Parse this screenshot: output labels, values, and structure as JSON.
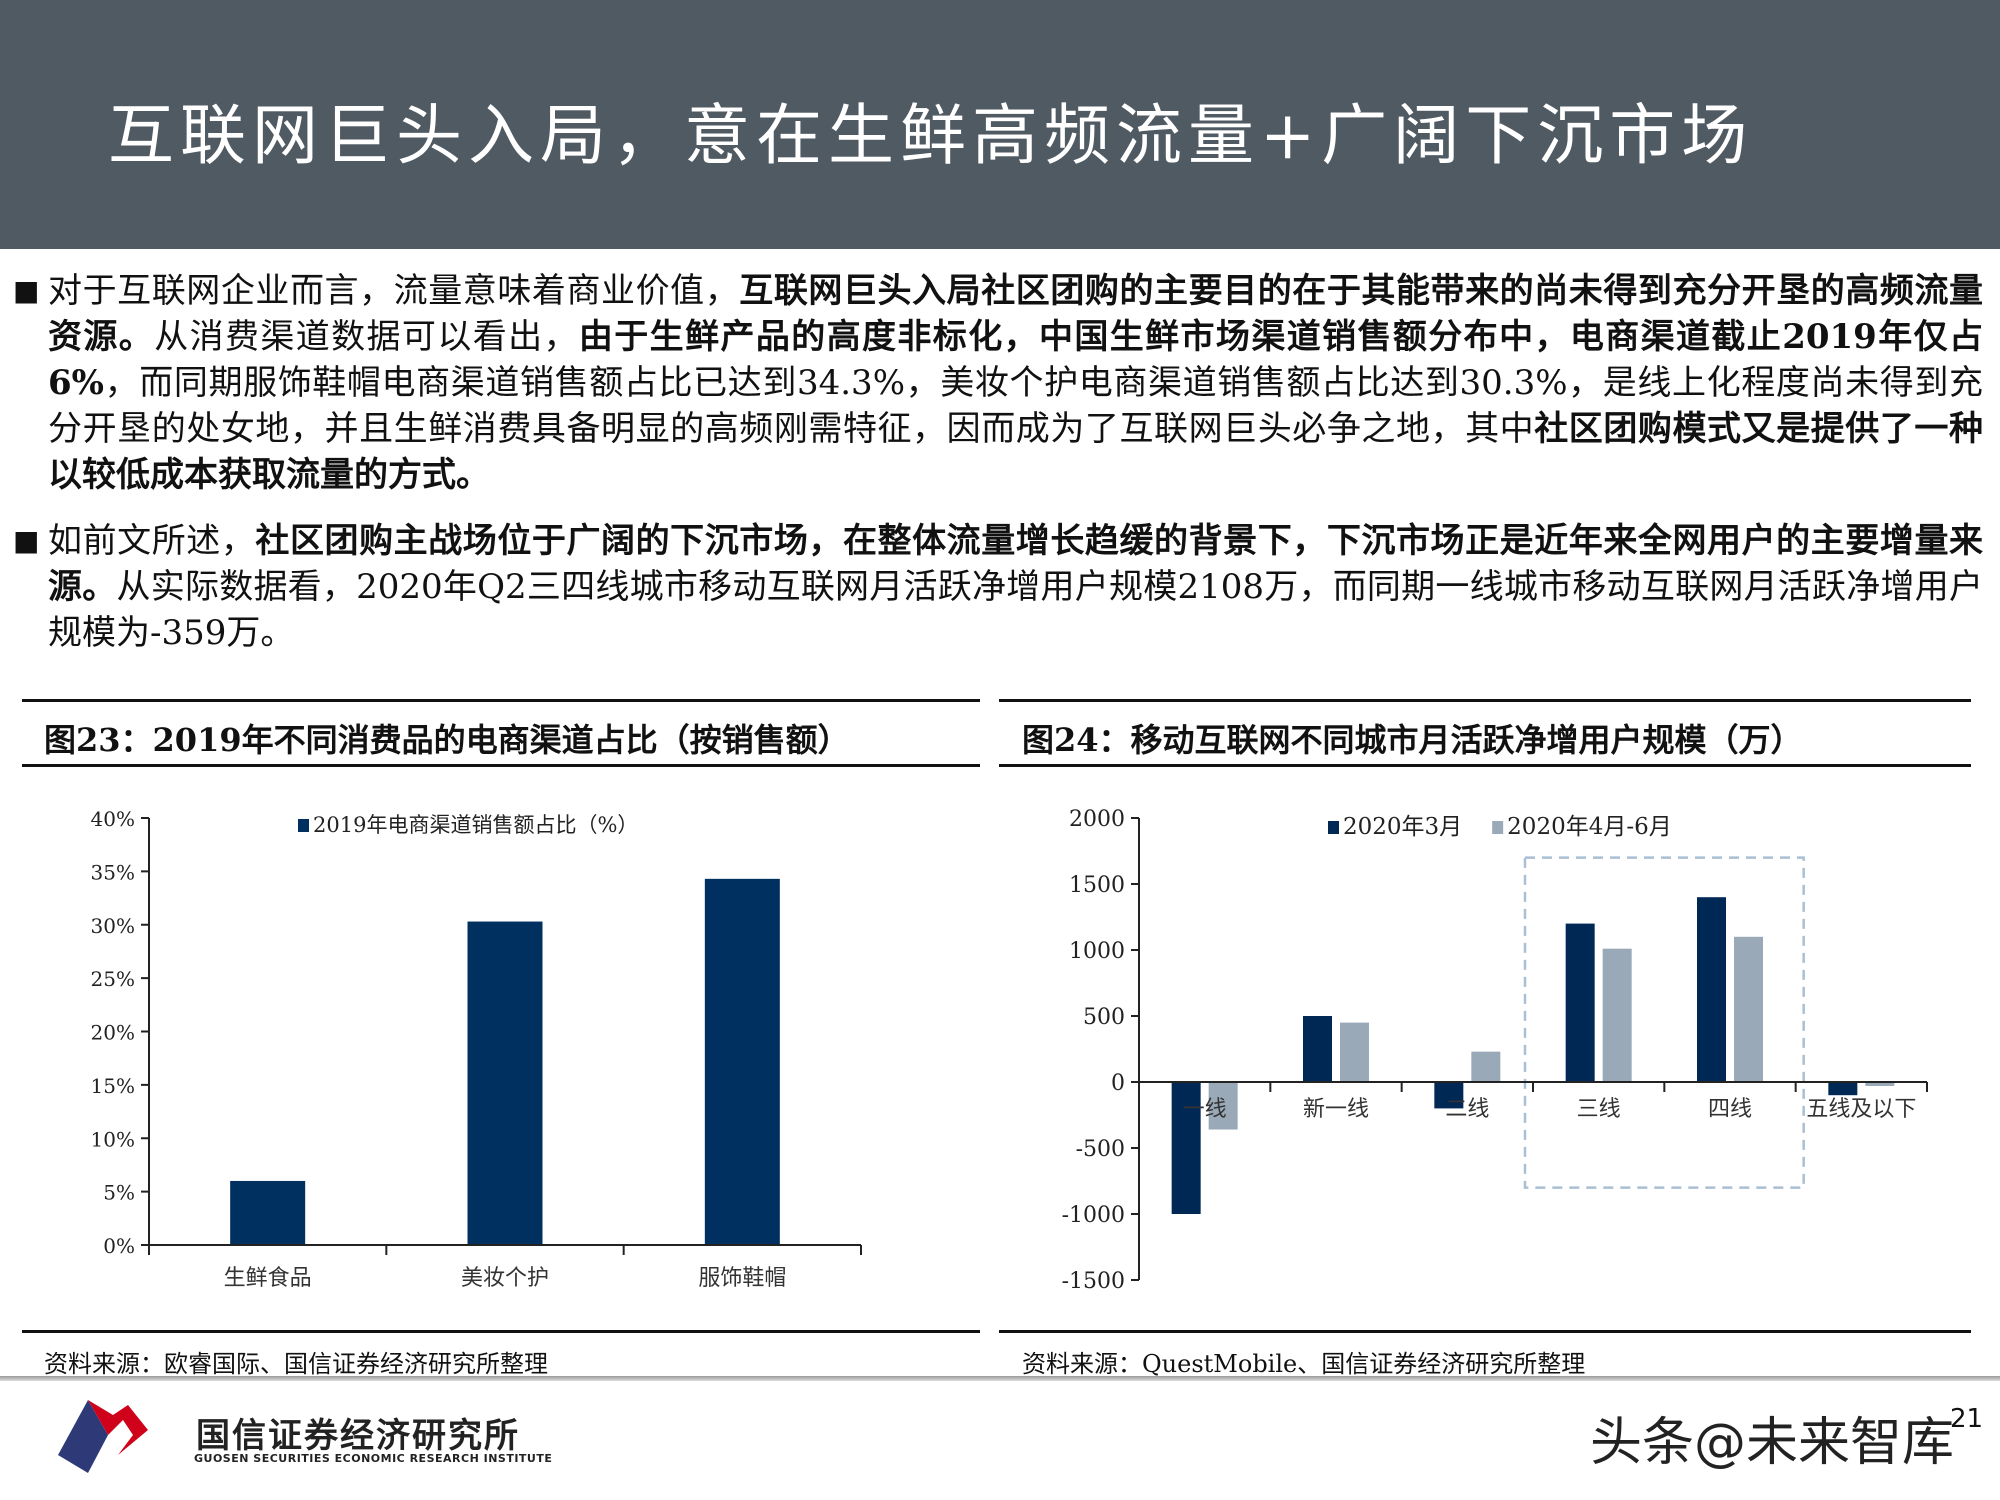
{
  "header": {
    "title": "互联网巨头入局，意在生鲜高频流量+广阔下沉市场"
  },
  "paragraphs": [
    {
      "bullet": "■",
      "segments": [
        {
          "text": "对于互联网企业而言，流量意味着商业价值，",
          "bold": false
        },
        {
          "text": "互联网巨头入局社区团购的主要目的在于其能带来的尚未得到充分开垦的高频流量资源。",
          "bold": true
        },
        {
          "text": "从消费渠道数据可以看出，",
          "bold": false
        },
        {
          "text": "由于生鲜产品的高度非标化，中国生鲜市场渠道销售额分布中，电商渠道截止2019年仅占6%",
          "bold": true
        },
        {
          "text": "，而同期服饰鞋帽电商渠道销售额占比已达到34.3%，美妆个护电商渠道销售额占比达到30.3%，是线上化程度尚未得到充分开垦的处女地，并且生鲜消费具备明显的高频刚需特征，因而成为了互联网巨头必争之地，其中",
          "bold": false
        },
        {
          "text": "社区团购模式又是提供了一种以较低成本获取流量的方式。",
          "bold": true
        }
      ]
    },
    {
      "bullet": "■",
      "segments": [
        {
          "text": "如前文所述，",
          "bold": false
        },
        {
          "text": "社区团购主战场位于广阔的下沉市场，在整体流量增长趋缓的背景下，下沉市场正是近年来全网用户的主要增量来源。",
          "bold": true
        },
        {
          "text": "从实际数据看，2020年Q2三四线城市移动互联网月活跃净增用户规模2108万，而同期一线城市移动互联网月活跃净增用户规模为-359万。",
          "bold": false
        }
      ]
    }
  ],
  "figures": [
    {
      "title": "图23：2019年不同消费品的电商渠道占比（按销售额）",
      "source": "资料来源：欧睿国际、国信证券经济研究所整理"
    },
    {
      "title": "图24：移动互联网不同城市月活跃净增用户规模（万）",
      "source": "资料来源：QuestMobile、国信证券经济研究所整理"
    }
  ],
  "chart_data": [
    {
      "type": "bar",
      "categories": [
        "生鲜食品",
        "美妆个护",
        "服饰鞋帽"
      ],
      "series": [
        {
          "name": "2019年电商渠道销售额占比（%）",
          "values": [
            6.0,
            30.3,
            34.3
          ],
          "color": "#003060"
        }
      ],
      "ylim": [
        0,
        40
      ],
      "yticks": [
        0,
        5,
        10,
        15,
        20,
        25,
        30,
        35,
        40
      ],
      "ytick_labels": [
        "0%",
        "5%",
        "10%",
        "15%",
        "20%",
        "25%",
        "30%",
        "35%",
        "40%"
      ],
      "legend": "top",
      "grid": false
    },
    {
      "type": "bar",
      "categories": [
        "一线",
        "新一线",
        "二线",
        "三线",
        "四线",
        "五线及以下"
      ],
      "series": [
        {
          "name": "2020年3月",
          "values": [
            -1000,
            500,
            -200,
            1200,
            1400,
            -100
          ],
          "color": "#002855"
        },
        {
          "name": "2020年4月-6月",
          "values": [
            -360,
            450,
            230,
            1010,
            1100,
            -30
          ],
          "color": "#9aa9b8"
        }
      ],
      "ylim": [
        -1500,
        2000
      ],
      "yticks": [
        -1500,
        -1000,
        -500,
        0,
        500,
        1000,
        1500,
        2000
      ],
      "ytick_labels": [
        "-1500",
        "-1000",
        "-500",
        "0",
        "500",
        "1000",
        "1500",
        "2000"
      ],
      "legend": "top",
      "grid": false,
      "highlight_categories": [
        "三线",
        "四线"
      ]
    }
  ],
  "footer": {
    "logo_text": "国信证券经济研究所",
    "logo_subtext": "GUOSEN SECURITIES ECONOMIC RESEARCH INSTITUTE",
    "watermark": "头条@未来智库",
    "page_number": "21"
  }
}
